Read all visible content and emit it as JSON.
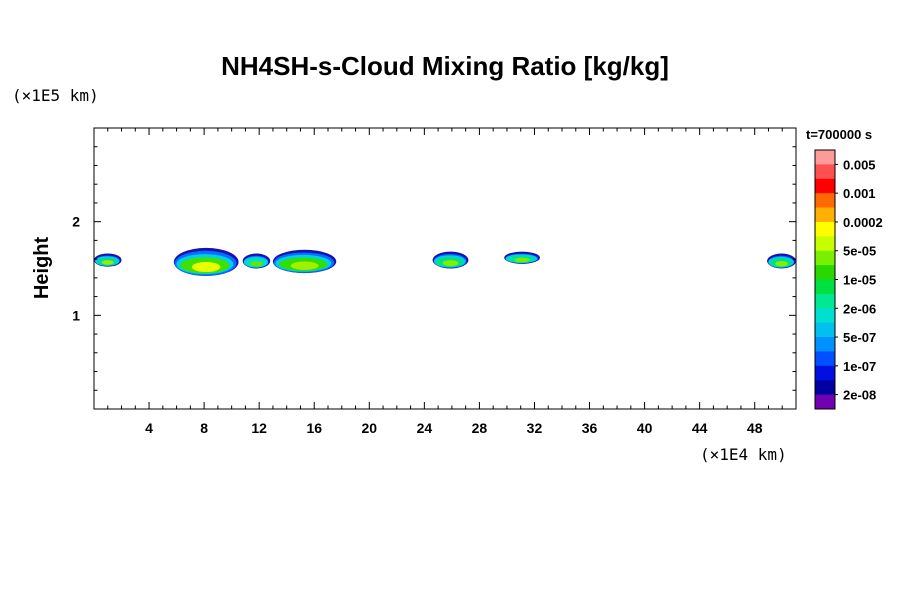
{
  "chart_data": {
    "type": "heatmap",
    "title": "NH4SH-s-Cloud Mixing Ratio [kg/kg]",
    "xlabel": "",
    "x_unit": "(×1E4 km)",
    "ylabel": "Height",
    "y_unit": "(×1E5 km)",
    "xlim": [
      0,
      51
    ],
    "ylim": [
      0,
      3
    ],
    "x_ticks": [
      4,
      8,
      12,
      16,
      20,
      24,
      28,
      32,
      36,
      40,
      44,
      48
    ],
    "x_tick_labels": [
      "4",
      "8",
      "12",
      "16",
      "20",
      "24",
      "28",
      "32",
      "36",
      "40",
      "44",
      "48"
    ],
    "y_ticks": [
      1,
      2
    ],
    "y_tick_labels": [
      "1",
      "2"
    ],
    "time_label": "t=700000 s",
    "colorbar": {
      "labels": [
        "0.005",
        "0.001",
        "0.0002",
        "5e-05",
        "1e-05",
        "2e-06",
        "5e-07",
        "1e-07",
        "2e-08"
      ],
      "colors": [
        "#ff9a9a",
        "#ff5050",
        "#ff0000",
        "#ff6a00",
        "#ffb000",
        "#ffff00",
        "#c8ff00",
        "#78f000",
        "#28d800",
        "#00e040",
        "#00e890",
        "#00e0d0",
        "#00c0f0",
        "#0090ff",
        "#0050ff",
        "#0010e0",
        "#0000a0",
        "#7000b0"
      ]
    },
    "cloud_patches": [
      {
        "x": [
          0,
          2
        ],
        "y": [
          1.52,
          1.66
        ],
        "core": "#00d8a0",
        "peak": "#90f000"
      },
      {
        "x": [
          5.8,
          10.5
        ],
        "y": [
          1.42,
          1.72
        ],
        "core": "#40e000",
        "peak": "#e8ff00"
      },
      {
        "x": [
          10.8,
          12.8
        ],
        "y": [
          1.5,
          1.66
        ],
        "core": "#00e0c0",
        "peak": "#60e800"
      },
      {
        "x": [
          13.0,
          17.6
        ],
        "y": [
          1.45,
          1.7
        ],
        "core": "#30e000",
        "peak": "#a0f000"
      },
      {
        "x": [
          24.6,
          27.2
        ],
        "y": [
          1.5,
          1.68
        ],
        "core": "#00e080",
        "peak": "#80f000"
      },
      {
        "x": [
          29.8,
          32.4
        ],
        "y": [
          1.55,
          1.68
        ],
        "core": "#00e0a0",
        "peak": "#70f000"
      },
      {
        "x": [
          48.9,
          51
        ],
        "y": [
          1.5,
          1.66
        ],
        "core": "#00e080",
        "peak": "#80f000"
      }
    ]
  }
}
